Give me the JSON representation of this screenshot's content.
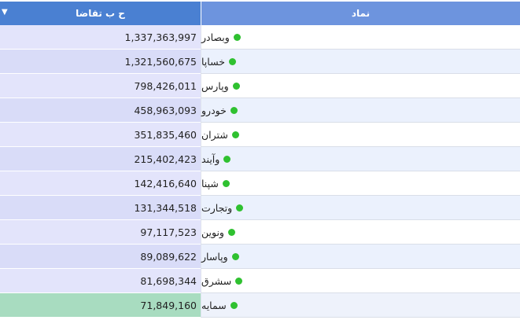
{
  "columns": {
    "symbol": "نماد",
    "value": "ح ب تقاضا",
    "sort_icon": "▼"
  },
  "colors": {
    "status_dot": "#2fc130",
    "header_value": "#4a80d2",
    "header_symbol": "#6d94de",
    "highlight": "#a8dcc0"
  },
  "rows": [
    {
      "symbol": "وبصادر",
      "value": "1,337,363,997"
    },
    {
      "symbol": "خساپا",
      "value": "1,321,560,675"
    },
    {
      "symbol": "وپارس",
      "value": "798,426,011"
    },
    {
      "symbol": "خودرو",
      "value": "458,963,093"
    },
    {
      "symbol": "شتران",
      "value": "351,835,460"
    },
    {
      "symbol": "وآیند",
      "value": "215,402,423"
    },
    {
      "symbol": "شپنا",
      "value": "142,416,640"
    },
    {
      "symbol": "وتجارت",
      "value": "131,344,518"
    },
    {
      "symbol": "ونوین",
      "value": "97,117,523"
    },
    {
      "symbol": "وپاسار",
      "value": "89,089,622"
    },
    {
      "symbol": "سشرق",
      "value": "81,698,344"
    },
    {
      "symbol": "سمایه",
      "value": "71,849,160"
    }
  ]
}
